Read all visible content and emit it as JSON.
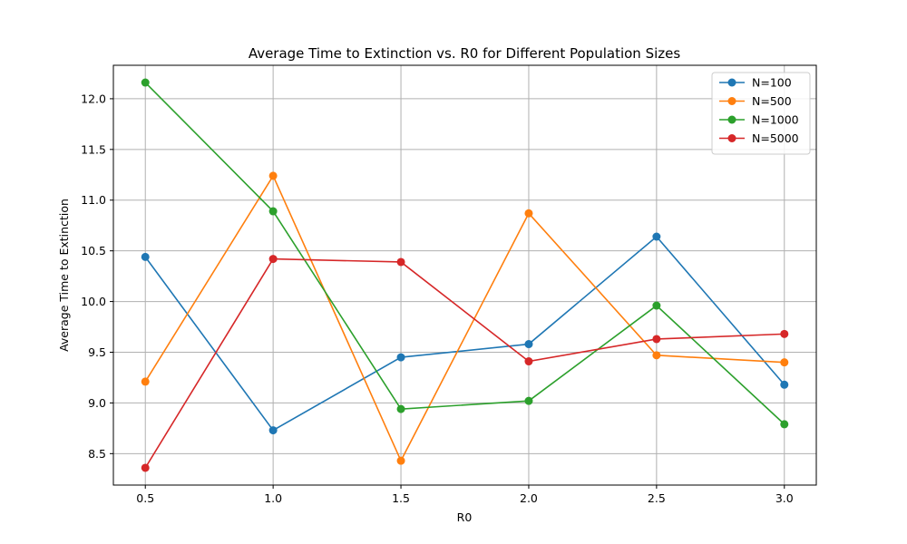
{
  "chart_data": {
    "type": "line",
    "title": "Average Time to Extinction vs. R0 for Different Population Sizes",
    "xlabel": "R0",
    "ylabel": "Average Time to Extinction",
    "x": [
      0.5,
      1.0,
      1.5,
      2.0,
      2.5,
      3.0
    ],
    "xticks": [
      "0.5",
      "1.0",
      "1.5",
      "2.0",
      "2.5",
      "3.0"
    ],
    "yticks": [
      "8.5",
      "9.0",
      "9.5",
      "10.0",
      "10.5",
      "11.0",
      "11.5",
      "12.0"
    ],
    "xlim": [
      0.375,
      3.125
    ],
    "ylim": [
      8.19,
      12.33
    ],
    "grid": true,
    "legend_position": "top-right",
    "series": [
      {
        "name": "N=100",
        "color": "#1f77b4",
        "values": [
          10.44,
          8.73,
          9.45,
          9.58,
          10.64,
          9.18
        ]
      },
      {
        "name": "N=500",
        "color": "#ff7f0e",
        "values": [
          9.21,
          11.24,
          8.43,
          10.87,
          9.47,
          9.4
        ]
      },
      {
        "name": "N=1000",
        "color": "#2ca02c",
        "values": [
          12.16,
          10.89,
          8.94,
          9.02,
          9.96,
          8.79
        ]
      },
      {
        "name": "N=5000",
        "color": "#d62728",
        "values": [
          8.36,
          10.42,
          10.39,
          9.41,
          9.63,
          9.68
        ]
      }
    ]
  }
}
